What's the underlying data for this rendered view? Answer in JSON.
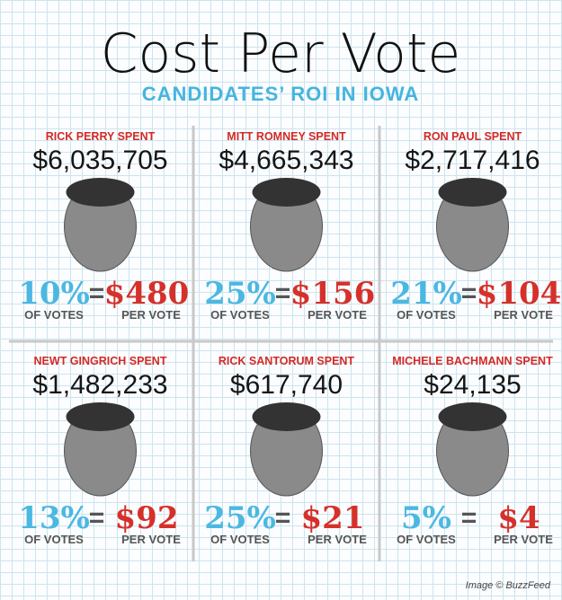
{
  "header": {
    "title": "Cost Per Vote",
    "subtitle": "CANDIDATES’ ROI IN IOWA"
  },
  "labels": {
    "equals": "=",
    "of_votes": "OF VOTES",
    "per_vote": "PER VOTE"
  },
  "candidates": [
    {
      "spent_label": "RICK PERRY SPENT",
      "amount": "$6,035,705",
      "vote_share": "10%",
      "cost_per_vote": "$480"
    },
    {
      "spent_label": "MITT ROMNEY SPENT",
      "amount": "$4,665,343",
      "vote_share": "25%",
      "cost_per_vote": "$156"
    },
    {
      "spent_label": "RON PAUL SPENT",
      "amount": "$2,717,416",
      "vote_share": "21%",
      "cost_per_vote": "$104"
    },
    {
      "spent_label": "NEWT GINGRICH SPENT",
      "amount": "$1,482,233",
      "vote_share": "13%",
      "cost_per_vote": "$92"
    },
    {
      "spent_label": "RICK SANTORUM SPENT",
      "amount": "$617,740",
      "vote_share": "25%",
      "cost_per_vote": "$21"
    },
    {
      "spent_label": "MICHELE BACHMANN SPENT",
      "amount": "$24,135",
      "vote_share": "5%",
      "cost_per_vote": "$4"
    }
  ],
  "footer": {
    "credit": "Image © BuzzFeed"
  }
}
